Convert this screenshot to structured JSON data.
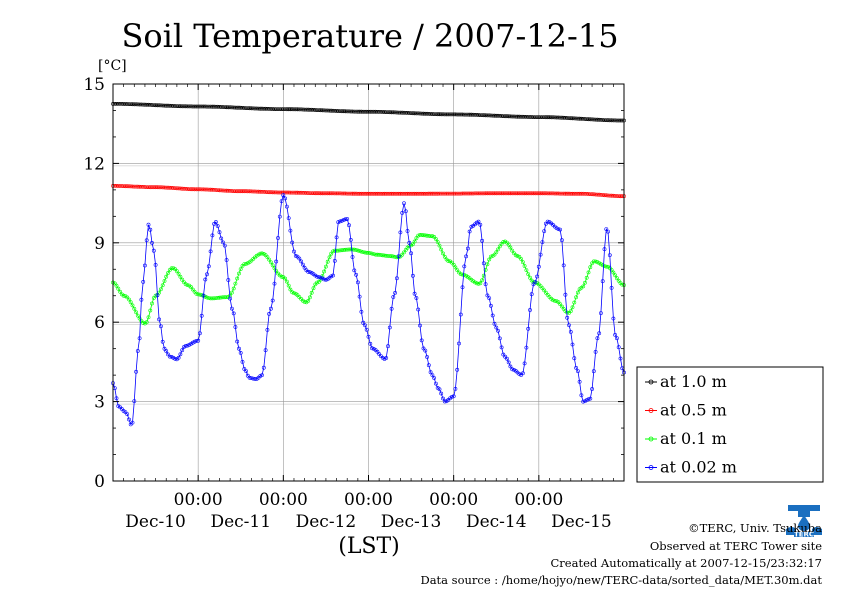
{
  "chart_data": {
    "type": "line",
    "title": "Soil Temperature / 2007-12-15",
    "unit_label": "[°C]",
    "xlabel": "(LST)",
    "ylim": [
      0,
      15
    ],
    "xlim": [
      0,
      6
    ],
    "y_ticks": [
      0,
      3,
      6,
      9,
      12,
      15
    ],
    "y_tick_labels": [
      "0",
      "3",
      "6",
      "9",
      "12",
      "15"
    ],
    "x_ticks": [
      1,
      2,
      3,
      4,
      5
    ],
    "x_tick_time_labels": [
      "00:00",
      "00:00",
      "00:00",
      "00:00",
      "00:00"
    ],
    "x_day_positions": [
      0.5,
      1.5,
      2.5,
      3.5,
      4.5,
      5.5
    ],
    "x_day_labels": [
      "Dec-10",
      "Dec-11",
      "Dec-12",
      "Dec-13",
      "Dec-14",
      "Dec-15"
    ],
    "x_unit": "days from start of Dec-09 12:00 LST (x=1 is Dec-10 00:00)",
    "grid": true,
    "legend_position": "right-bottom, outside plot",
    "series": [
      {
        "name": "at 1.0 m",
        "color": "#000000",
        "x": [
          0,
          1,
          2,
          3,
          4,
          5,
          6
        ],
        "values": [
          14.25,
          14.15,
          14.05,
          13.95,
          13.85,
          13.75,
          13.62
        ]
      },
      {
        "name": "at 0.5 m",
        "color": "#ff0000",
        "x": [
          0,
          0.5,
          1,
          1.5,
          2,
          2.5,
          3,
          3.5,
          4,
          4.5,
          5,
          5.5,
          6
        ],
        "values": [
          11.15,
          11.1,
          11.02,
          10.95,
          10.9,
          10.87,
          10.85,
          10.85,
          10.86,
          10.87,
          10.87,
          10.85,
          10.76
        ]
      },
      {
        "name": "at 0.1 m",
        "color": "#00ff00",
        "x": [
          0,
          0.13,
          0.38,
          0.5,
          0.7,
          0.88,
          1.0,
          1.15,
          1.35,
          1.55,
          1.75,
          2.0,
          2.12,
          2.27,
          2.4,
          2.6,
          2.8,
          3.0,
          3.1,
          3.25,
          3.35,
          3.5,
          3.6,
          3.75,
          3.95,
          4.1,
          4.3,
          4.45,
          4.6,
          4.75,
          4.95,
          5.2,
          5.35,
          5.5,
          5.65,
          5.8,
          6.0
        ],
        "values": [
          7.5,
          7.0,
          5.95,
          7.0,
          8.05,
          7.4,
          7.05,
          6.9,
          6.95,
          8.2,
          8.6,
          7.7,
          7.1,
          6.75,
          7.5,
          8.7,
          8.75,
          8.62,
          8.55,
          8.5,
          8.45,
          8.9,
          9.3,
          9.25,
          8.3,
          7.8,
          7.45,
          8.5,
          9.05,
          8.5,
          7.5,
          6.8,
          6.35,
          7.3,
          8.3,
          8.1,
          7.4
        ]
      },
      {
        "name": "at 0.02 m",
        "color": "#0000ff",
        "x": [
          0,
          0.07,
          0.15,
          0.22,
          0.3,
          0.35,
          0.42,
          0.48,
          0.55,
          0.6,
          0.67,
          0.75,
          0.85,
          1.0,
          1.1,
          1.2,
          1.3,
          1.4,
          1.48,
          1.55,
          1.6,
          1.68,
          1.75,
          1.85,
          2.0,
          2.15,
          2.3,
          2.42,
          2.5,
          2.58,
          2.65,
          2.75,
          2.85,
          2.95,
          3.05,
          3.2,
          3.3,
          3.42,
          3.48,
          3.55,
          3.65,
          3.75,
          3.82,
          3.9,
          4.0,
          4.15,
          4.2,
          4.3,
          4.4,
          4.5,
          4.6,
          4.7,
          4.8,
          4.95,
          5.1,
          5.25,
          5.35,
          5.45,
          5.52,
          5.6,
          5.7,
          5.8,
          5.9,
          6.0
        ],
        "values": [
          3.7,
          2.8,
          2.6,
          2.1,
          5.0,
          7.5,
          9.7,
          8.7,
          6.0,
          5.0,
          4.7,
          4.6,
          5.1,
          5.3,
          7.8,
          9.8,
          9.0,
          6.5,
          5.0,
          4.2,
          3.9,
          3.85,
          4.0,
          6.5,
          10.8,
          8.5,
          7.9,
          7.7,
          7.6,
          7.75,
          9.8,
          9.9,
          7.8,
          5.9,
          5.0,
          4.6,
          7.0,
          10.5,
          9.0,
          7.0,
          5.0,
          4.0,
          3.5,
          3.0,
          3.2,
          8.5,
          9.6,
          9.8,
          7.0,
          5.8,
          4.7,
          4.2,
          4.0,
          7.5,
          9.8,
          9.5,
          5.9,
          4.2,
          3.0,
          3.1,
          5.5,
          9.6,
          5.5,
          4.1
        ]
      }
    ]
  },
  "footer": {
    "copyright": "©TERC, Univ. Tsukuba",
    "observed": "Observed at TERC Tower site",
    "created": "Created Automatically at 2007-12-15/23:32:17",
    "source": "Data source : /home/hojyo/new/TERC-data/sorted_data/MET.30m.dat"
  },
  "logo": {
    "text": "TERC",
    "color": "#1a6fc0"
  }
}
